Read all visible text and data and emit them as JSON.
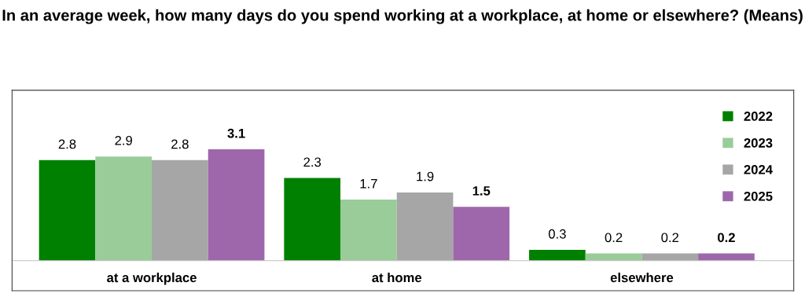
{
  "chart_data": {
    "type": "bar",
    "title": "In an average week, how many days do you spend working at a workplace, at home or elsewhere? (Means)",
    "categories": [
      "at a workplace",
      "at home",
      "elsewhere"
    ],
    "series": [
      {
        "name": "2022",
        "color": "#008000",
        "values": [
          2.8,
          2.3,
          0.3
        ]
      },
      {
        "name": "2023",
        "color": "#99cc99",
        "values": [
          2.9,
          1.7,
          0.2
        ]
      },
      {
        "name": "2024",
        "color": "#a6a6a6",
        "values": [
          2.8,
          1.9,
          0.2
        ]
      },
      {
        "name": "2025",
        "color": "#9e67ab",
        "values": [
          3.1,
          1.5,
          0.2
        ]
      }
    ],
    "data_labels": true,
    "legend": "top right"
  }
}
